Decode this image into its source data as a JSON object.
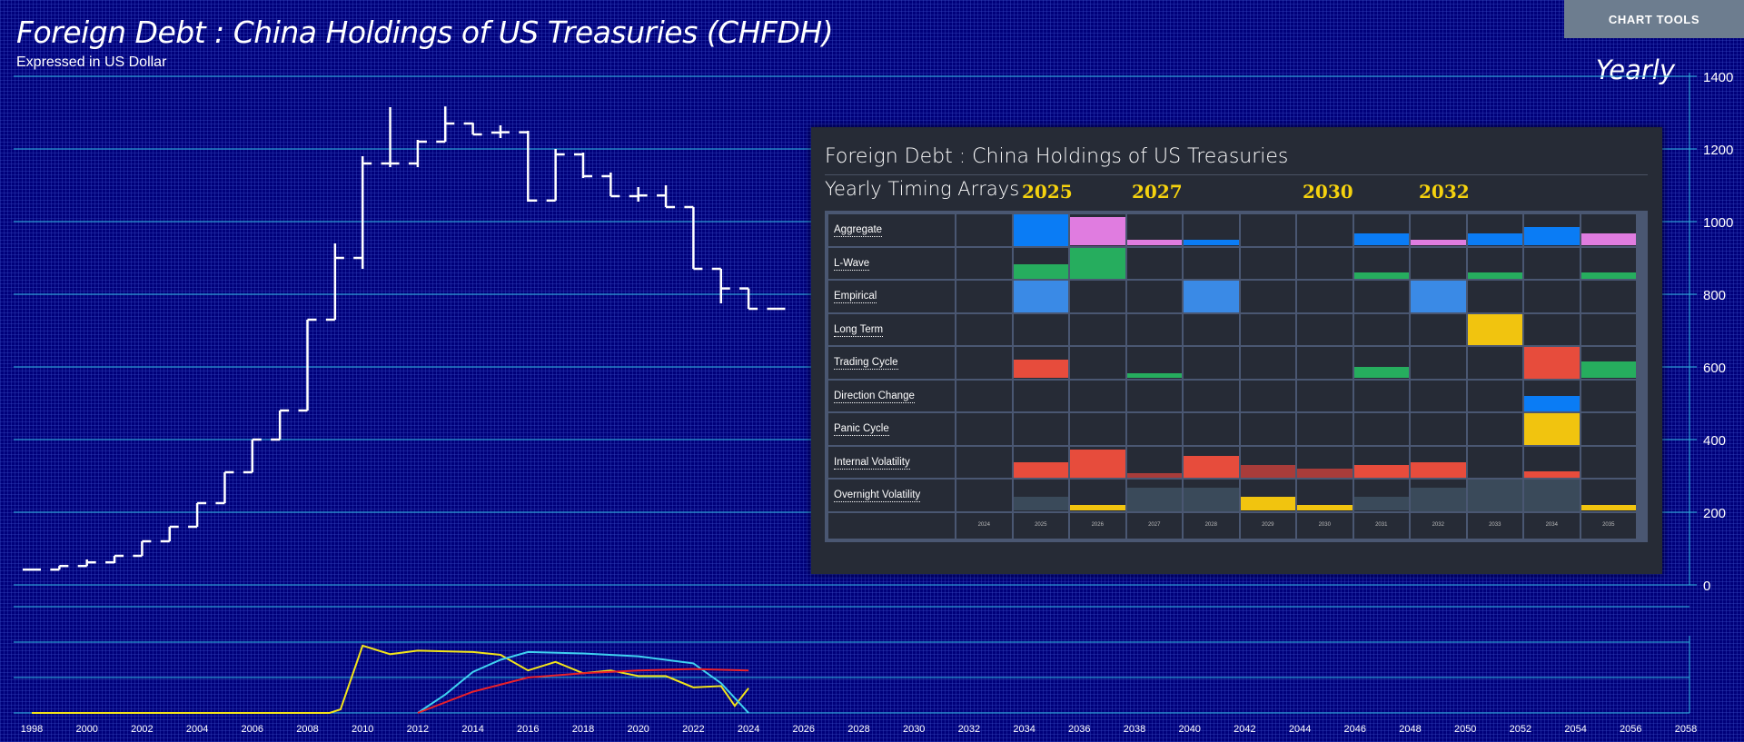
{
  "header": {
    "title": "Foreign Debt : China Holdings of US Treasuries (CHFDH)",
    "subtitle": "Expressed in US Dollar",
    "frequency": "Yearly",
    "chart_tools_label": "CHART TOOLS"
  },
  "chart_data": {
    "type": "ohlc",
    "title": "Foreign Debt : China Holdings of US Treasuries (CHFDH)",
    "subtitle": "Expressed in US Dollar",
    "ylim": [
      0,
      1400
    ],
    "y_ticks": [
      "0",
      "200",
      "400",
      "600",
      "800",
      "1000",
      "1200",
      "1400"
    ],
    "x_ticks": [
      "1998",
      "2000",
      "2002",
      "2004",
      "2006",
      "2008",
      "2010",
      "2012",
      "2014",
      "2016",
      "2018",
      "2020",
      "2022",
      "2024",
      "2026",
      "2028",
      "2030",
      "2032",
      "2034",
      "2036",
      "2038",
      "2040",
      "2042",
      "2044",
      "2046",
      "2048",
      "2050",
      "2052",
      "2054",
      "2056",
      "2058"
    ],
    "bars": [
      {
        "year": 1998,
        "open": 42,
        "high": 43,
        "low": 41,
        "close": 42
      },
      {
        "year": 1999,
        "open": 42,
        "high": 52,
        "low": 42,
        "close": 52
      },
      {
        "year": 2000,
        "open": 52,
        "high": 70,
        "low": 52,
        "close": 62
      },
      {
        "year": 2001,
        "open": 62,
        "high": 80,
        "low": 60,
        "close": 80
      },
      {
        "year": 2002,
        "open": 80,
        "high": 120,
        "low": 80,
        "close": 120
      },
      {
        "year": 2003,
        "open": 120,
        "high": 160,
        "low": 120,
        "close": 160
      },
      {
        "year": 2004,
        "open": 160,
        "high": 225,
        "low": 160,
        "close": 225
      },
      {
        "year": 2005,
        "open": 225,
        "high": 310,
        "low": 225,
        "close": 310
      },
      {
        "year": 2006,
        "open": 310,
        "high": 400,
        "low": 310,
        "close": 400
      },
      {
        "year": 2007,
        "open": 400,
        "high": 480,
        "low": 400,
        "close": 480
      },
      {
        "year": 2008,
        "open": 480,
        "high": 730,
        "low": 480,
        "close": 730
      },
      {
        "year": 2009,
        "open": 730,
        "high": 940,
        "low": 730,
        "close": 900
      },
      {
        "year": 2010,
        "open": 900,
        "high": 1180,
        "low": 870,
        "close": 1160
      },
      {
        "year": 2011,
        "open": 1160,
        "high": 1315,
        "low": 1150,
        "close": 1160
      },
      {
        "year": 2012,
        "open": 1160,
        "high": 1225,
        "low": 1150,
        "close": 1220
      },
      {
        "year": 2013,
        "open": 1220,
        "high": 1317,
        "low": 1220,
        "close": 1270
      },
      {
        "year": 2014,
        "open": 1270,
        "high": 1272,
        "low": 1240,
        "close": 1240
      },
      {
        "year": 2015,
        "open": 1245,
        "high": 1265,
        "low": 1230,
        "close": 1246
      },
      {
        "year": 2016,
        "open": 1246,
        "high": 1250,
        "low": 1055,
        "close": 1058
      },
      {
        "year": 2017,
        "open": 1058,
        "high": 1200,
        "low": 1058,
        "close": 1185
      },
      {
        "year": 2018,
        "open": 1185,
        "high": 1190,
        "low": 1120,
        "close": 1125
      },
      {
        "year": 2019,
        "open": 1125,
        "high": 1135,
        "low": 1070,
        "close": 1070
      },
      {
        "year": 2020,
        "open": 1070,
        "high": 1095,
        "low": 1055,
        "close": 1072
      },
      {
        "year": 2021,
        "open": 1072,
        "high": 1100,
        "low": 1040,
        "close": 1040
      },
      {
        "year": 2022,
        "open": 1040,
        "high": 1040,
        "low": 870,
        "close": 870
      },
      {
        "year": 2023,
        "open": 870,
        "high": 870,
        "low": 775,
        "close": 816
      },
      {
        "year": 2024,
        "open": 816,
        "high": 816,
        "low": 760,
        "close": 760
      },
      {
        "year": 2025,
        "open": 760,
        "high": 760,
        "low": 760,
        "close": 760
      }
    ],
    "oscillators": [
      {
        "color": "#f2e41a",
        "values": [
          [
            1998,
            0
          ],
          [
            2008.8,
            0
          ],
          [
            2009.2,
            5
          ],
          [
            2010,
            95
          ],
          [
            2011,
            83
          ],
          [
            2012,
            88
          ],
          [
            2014,
            86
          ],
          [
            2015,
            82
          ],
          [
            2016,
            60
          ],
          [
            2017,
            72
          ],
          [
            2018,
            56
          ],
          [
            2019,
            60
          ],
          [
            2020,
            52
          ],
          [
            2021,
            52
          ],
          [
            2022,
            36
          ],
          [
            2023,
            38
          ],
          [
            2023.5,
            10
          ],
          [
            2024,
            35
          ]
        ]
      },
      {
        "color": "#3fd2f0",
        "values": [
          [
            2012,
            0
          ],
          [
            2013,
            26
          ],
          [
            2014,
            58
          ],
          [
            2015,
            75
          ],
          [
            2016,
            86
          ],
          [
            2018,
            84
          ],
          [
            2020,
            80
          ],
          [
            2022,
            70
          ],
          [
            2023,
            42
          ],
          [
            2024,
            0
          ]
        ]
      },
      {
        "color": "#e8202a",
        "values": [
          [
            2012,
            0
          ],
          [
            2014,
            30
          ],
          [
            2016,
            50
          ],
          [
            2018,
            56
          ],
          [
            2020,
            60
          ],
          [
            2022,
            62
          ],
          [
            2024,
            60
          ]
        ]
      }
    ]
  },
  "panel": {
    "title": "Foreign Debt : China Holdings of US Treasuries",
    "subtitle": "Yearly Timing Arrays",
    "highlight_years": [
      "2025",
      "2027",
      "2030",
      "2032"
    ],
    "column_years": [
      "2024",
      "2025",
      "2026",
      "2027",
      "2028",
      "2029",
      "2030",
      "2031",
      "2032",
      "2033",
      "2034",
      "2035"
    ],
    "rows": [
      {
        "label": "Aggregate",
        "cells": [
          [
            0,
            "#000000"
          ],
          [
            1,
            "#0a7cf5"
          ],
          [
            0.9,
            "#e07ce0"
          ],
          [
            0.2,
            "#e07ce0"
          ],
          [
            0.2,
            "#0a7cf5"
          ],
          [
            0,
            "#000000"
          ],
          [
            0,
            "#000000"
          ],
          [
            0.4,
            "#0a7cf5"
          ],
          [
            0.2,
            "#e07ce0"
          ],
          [
            0.4,
            "#0a7cf5"
          ],
          [
            0.6,
            "#0a7cf5"
          ],
          [
            0.4,
            "#e07ce0"
          ]
        ]
      },
      {
        "label": "L-Wave",
        "cells": [
          [
            0,
            "#000000"
          ],
          [
            0.45,
            "#26ad5e"
          ],
          [
            1,
            "#26ad5e"
          ],
          [
            0,
            "#000000"
          ],
          [
            0,
            "#000000"
          ],
          [
            0,
            "#000000"
          ],
          [
            0,
            "#000000"
          ],
          [
            0.2,
            "#26ad5e"
          ],
          [
            0,
            "#000000"
          ],
          [
            0.2,
            "#26ad5e"
          ],
          [
            0,
            "#000000"
          ],
          [
            0.2,
            "#26ad5e"
          ]
        ]
      },
      {
        "label": "Empirical",
        "cells": [
          [
            0,
            "#000000"
          ],
          [
            1,
            "#3a8ae6"
          ],
          [
            0,
            "#000000"
          ],
          [
            0,
            "#000000"
          ],
          [
            1,
            "#3a8ae6"
          ],
          [
            0,
            "#000000"
          ],
          [
            0,
            "#000000"
          ],
          [
            0,
            "#000000"
          ],
          [
            1,
            "#3a8ae6"
          ],
          [
            0,
            "#000000"
          ],
          [
            0,
            "#000000"
          ],
          [
            0,
            "#000000"
          ]
        ]
      },
      {
        "label": "Long Term",
        "cells": [
          [
            0,
            "#000000"
          ],
          [
            0,
            "#000000"
          ],
          [
            0,
            "#000000"
          ],
          [
            0,
            "#000000"
          ],
          [
            0,
            "#000000"
          ],
          [
            0,
            "#000000"
          ],
          [
            0,
            "#000000"
          ],
          [
            0,
            "#000000"
          ],
          [
            0,
            "#000000"
          ],
          [
            1,
            "#f1c40f"
          ],
          [
            0,
            "#000000"
          ],
          [
            0,
            "#000000"
          ]
        ]
      },
      {
        "label": "Trading Cycle",
        "cells": [
          [
            0,
            "#000000"
          ],
          [
            0.6,
            "#e74c3c"
          ],
          [
            0,
            "#000000"
          ],
          [
            0.15,
            "#26ad5e"
          ],
          [
            0,
            "#000000"
          ],
          [
            0,
            "#000000"
          ],
          [
            0,
            "#000000"
          ],
          [
            0.35,
            "#26ad5e"
          ],
          [
            0,
            "#000000"
          ],
          [
            0,
            "#000000"
          ],
          [
            1,
            "#e74c3c"
          ],
          [
            0.55,
            "#26ad5e"
          ]
        ]
      },
      {
        "label": "Direction Change",
        "cells": [
          [
            0,
            "#000000"
          ],
          [
            0,
            "#000000"
          ],
          [
            0,
            "#000000"
          ],
          [
            0,
            "#000000"
          ],
          [
            0,
            "#000000"
          ],
          [
            0,
            "#000000"
          ],
          [
            0,
            "#000000"
          ],
          [
            0,
            "#000000"
          ],
          [
            0,
            "#000000"
          ],
          [
            0,
            "#000000"
          ],
          [
            0.5,
            "#0a7cf5"
          ],
          [
            0,
            "#000000"
          ]
        ]
      },
      {
        "label": "Panic Cycle",
        "cells": [
          [
            0,
            "#000000"
          ],
          [
            0,
            "#000000"
          ],
          [
            0,
            "#000000"
          ],
          [
            0,
            "#000000"
          ],
          [
            0,
            "#000000"
          ],
          [
            0,
            "#000000"
          ],
          [
            0,
            "#000000"
          ],
          [
            0,
            "#000000"
          ],
          [
            0,
            "#000000"
          ],
          [
            0,
            "#000000"
          ],
          [
            1,
            "#f1c40f"
          ],
          [
            0,
            "#000000"
          ]
        ]
      },
      {
        "label": "Internal Volatility",
        "cells": [
          [
            0,
            "#000000"
          ],
          [
            0.5,
            "#e74c3c"
          ],
          [
            0.9,
            "#e74c3c"
          ],
          [
            0.15,
            "#a83c3a"
          ],
          [
            0.7,
            "#e74c3c"
          ],
          [
            0.4,
            "#a83c3a"
          ],
          [
            0.3,
            "#a83c3a"
          ],
          [
            0.4,
            "#e74c3c"
          ],
          [
            0.5,
            "#e74c3c"
          ],
          [
            0,
            "#000000"
          ],
          [
            0.2,
            "#e74c3c"
          ],
          [
            0,
            "#000000"
          ]
        ]
      },
      {
        "label": "Overnight Volatility",
        "cells": [
          [
            0,
            "#000000"
          ],
          [
            0.45,
            "#3a4a5a"
          ],
          [
            0.2,
            "#f1c40f"
          ],
          [
            0.75,
            "#3a4a5a"
          ],
          [
            0.75,
            "#3a4a5a"
          ],
          [
            0.45,
            "#f1c40f"
          ],
          [
            0.2,
            "#f1c40f"
          ],
          [
            0.45,
            "#3a4a5a"
          ],
          [
            0.75,
            "#3a4a5a"
          ],
          [
            1,
            "#3a4a5a"
          ],
          [
            1,
            "#3a4a5a"
          ],
          [
            0.2,
            "#f1c40f"
          ]
        ]
      }
    ]
  }
}
